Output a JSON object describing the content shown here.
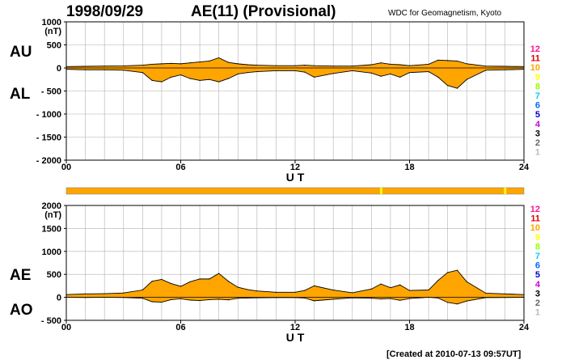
{
  "header": {
    "date": "1998/09/29",
    "title": "AE(11) (Provisional)",
    "source": "WDC for Geomagnetism, Kyoto"
  },
  "footer": "[Created at 2010-07-13 09:57UT]",
  "colors": {
    "fill": "#ffa500",
    "line": "#000000",
    "grid": "#b0b0b0",
    "quality_bar": "#ffa500",
    "quality_mark": "#ffff00"
  },
  "legend_levels": [
    {
      "label": "12",
      "color": "#ff1493"
    },
    {
      "label": "11",
      "color": "#dd0000"
    },
    {
      "label": "10",
      "color": "#ffa500"
    },
    {
      "label": "9",
      "color": "#ffff00"
    },
    {
      "label": "8",
      "color": "#99ff00"
    },
    {
      "label": "7",
      "color": "#00ccff"
    },
    {
      "label": "6",
      "color": "#0066ff"
    },
    {
      "label": "5",
      "color": "#0000cc"
    },
    {
      "label": "4",
      "color": "#cc00cc"
    },
    {
      "label": "3",
      "color": "#000000"
    },
    {
      "label": "2",
      "color": "#666666"
    },
    {
      "label": "1",
      "color": "#bbbbbb"
    }
  ],
  "chart_data": [
    {
      "type": "area",
      "panel": "AU / AL",
      "upper_label": "AU",
      "lower_label": "AL",
      "unit": "(nT)",
      "xlabel": "U T",
      "xlim": [
        0,
        24
      ],
      "ylim": [
        -2000,
        1000
      ],
      "xticks": [
        "00",
        "06",
        "12",
        "18",
        "24"
      ],
      "yticks": [
        "1000",
        "500",
        "0",
        "- 500",
        "- 1000",
        "- 1500",
        "- 2000"
      ],
      "grid": true,
      "x": [
        0,
        1,
        2,
        3,
        4,
        4.5,
        5,
        5.5,
        6,
        6.5,
        7,
        7.5,
        8,
        8.5,
        9,
        9.5,
        10,
        11,
        12,
        12.5,
        13,
        14,
        15,
        16,
        16.5,
        17,
        17.5,
        18,
        19,
        19.5,
        20,
        20.5,
        21,
        22,
        23,
        24
      ],
      "series": [
        {
          "name": "AU",
          "values": [
            30,
            35,
            40,
            45,
            60,
            80,
            90,
            100,
            90,
            110,
            130,
            150,
            220,
            120,
            90,
            70,
            60,
            50,
            50,
            60,
            50,
            40,
            40,
            70,
            110,
            80,
            70,
            50,
            80,
            170,
            160,
            150,
            90,
            40,
            35,
            30
          ]
        },
        {
          "name": "AL",
          "values": [
            -30,
            -40,
            -40,
            -50,
            -100,
            -270,
            -300,
            -200,
            -150,
            -230,
            -270,
            -250,
            -300,
            -230,
            -130,
            -100,
            -80,
            -60,
            -60,
            -90,
            -200,
            -120,
            -60,
            -110,
            -180,
            -130,
            -200,
            -100,
            -80,
            -200,
            -380,
            -440,
            -250,
            -50,
            -40,
            -30
          ]
        }
      ]
    },
    {
      "type": "area",
      "panel": "AE / AO",
      "upper_label": "AE",
      "lower_label": "AO",
      "unit": "(nT)",
      "xlabel": "U T",
      "xlim": [
        0,
        24
      ],
      "ylim": [
        -500,
        2000
      ],
      "xticks": [
        "00",
        "06",
        "12",
        "18",
        "24"
      ],
      "yticks": [
        "2000",
        "1500",
        "1000",
        "500",
        "0",
        "- 500"
      ],
      "grid": true,
      "x": [
        0,
        1,
        2,
        3,
        4,
        4.5,
        5,
        5.5,
        6,
        6.5,
        7,
        7.5,
        8,
        8.5,
        9,
        9.5,
        10,
        11,
        12,
        12.5,
        13,
        14,
        15,
        16,
        16.5,
        17,
        17.5,
        18,
        19,
        19.5,
        20,
        20.5,
        21,
        22,
        23,
        24
      ],
      "series": [
        {
          "name": "AE",
          "values": [
            60,
            75,
            80,
            95,
            160,
            350,
            390,
            300,
            240,
            340,
            400,
            400,
            520,
            350,
            220,
            170,
            140,
            110,
            110,
            150,
            250,
            160,
            100,
            180,
            290,
            210,
            270,
            150,
            160,
            370,
            540,
            590,
            340,
            90,
            75,
            60
          ]
        },
        {
          "name": "AO",
          "values": [
            0,
            -3,
            0,
            -3,
            -20,
            -95,
            -105,
            -50,
            -30,
            -60,
            -70,
            -50,
            -40,
            -55,
            -20,
            -15,
            -10,
            -5,
            -5,
            -15,
            -75,
            -40,
            -10,
            -20,
            -35,
            -25,
            -65,
            -25,
            0,
            -15,
            -110,
            -145,
            -80,
            -5,
            -3,
            0
          ]
        }
      ]
    }
  ]
}
